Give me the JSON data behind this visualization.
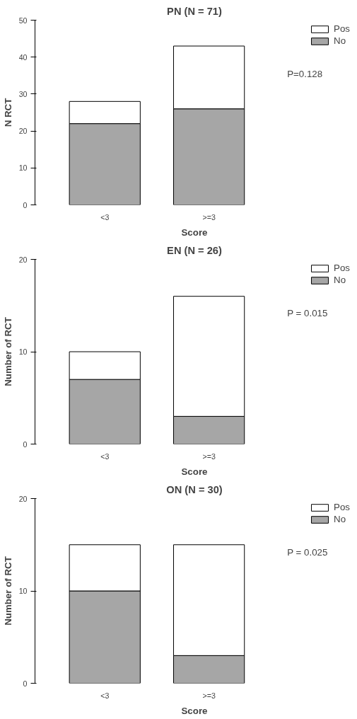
{
  "chart_data": [
    {
      "type": "bar",
      "title": "PN (N = 71)",
      "xlabel": "Score",
      "ylabel": "N RCT",
      "categories": [
        "<3",
        ">=3"
      ],
      "stacked": true,
      "ylim": [
        0,
        50
      ],
      "yticks": [
        0,
        10,
        20,
        30,
        40,
        50
      ],
      "legend": "right",
      "grid": false,
      "annotations": [
        "P=0.128"
      ],
      "series": [
        {
          "name": "No",
          "color": "#a6a6a6",
          "values": [
            22,
            26
          ]
        },
        {
          "name": "Pos",
          "color": "#ffffff",
          "values": [
            6,
            17
          ]
        }
      ]
    },
    {
      "type": "bar",
      "title": "EN (N = 26)",
      "xlabel": "Score",
      "ylabel": "Number of RCT",
      "categories": [
        "<3",
        ">=3"
      ],
      "stacked": true,
      "ylim": [
        0,
        20
      ],
      "yticks": [
        0,
        10,
        20
      ],
      "legend": "right",
      "grid": false,
      "annotations": [
        "P = 0.015"
      ],
      "series": [
        {
          "name": "No",
          "color": "#a6a6a6",
          "values": [
            7,
            3
          ]
        },
        {
          "name": "Pos",
          "color": "#ffffff",
          "values": [
            3,
            13
          ]
        }
      ]
    },
    {
      "type": "bar",
      "title": "ON (N = 30)",
      "xlabel": "Score",
      "ylabel": "Number of RCT",
      "categories": [
        "<3",
        ">=3"
      ],
      "stacked": true,
      "ylim": [
        0,
        20
      ],
      "yticks": [
        0,
        10,
        20
      ],
      "legend": "right",
      "grid": false,
      "annotations": [
        "P = 0.025"
      ],
      "series": [
        {
          "name": "No",
          "color": "#a6a6a6",
          "values": [
            10,
            3
          ]
        },
        {
          "name": "Pos",
          "color": "#ffffff",
          "values": [
            5,
            12
          ]
        }
      ]
    }
  ]
}
